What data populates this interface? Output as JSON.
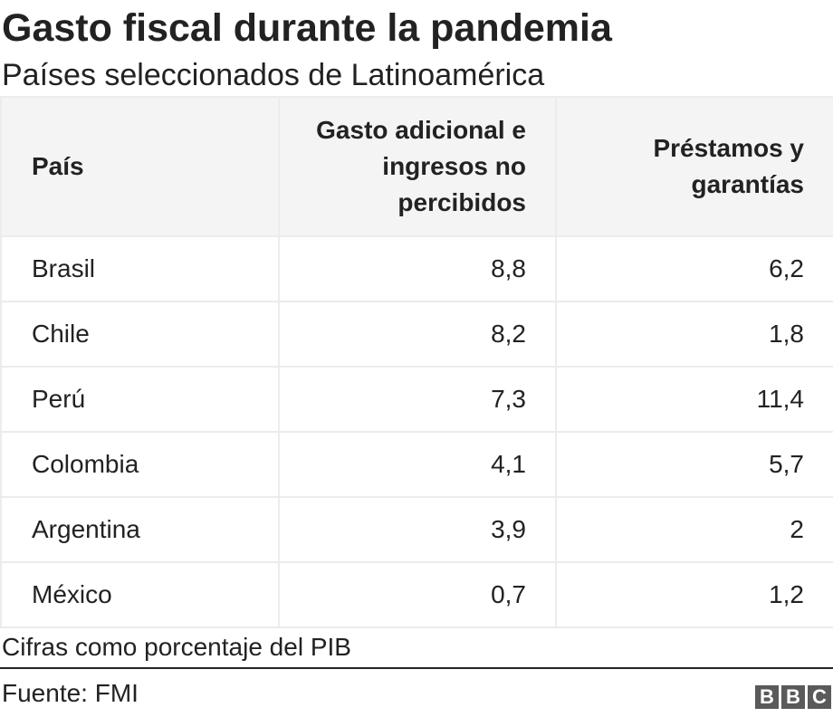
{
  "chart_data": {
    "type": "table",
    "title": "Gasto fiscal durante la pandemia",
    "subtitle": "Países seleccionados de Latinoamérica",
    "columns": [
      "País",
      "Gasto adicional e ingresos no percibidos",
      "Préstamos y garantías"
    ],
    "rows": [
      [
        "Brasil",
        "8,8",
        "6,2"
      ],
      [
        "Chile",
        "8,2",
        "1,8"
      ],
      [
        "Perú",
        "7,3",
        "11,4"
      ],
      [
        "Colombia",
        "4,1",
        "5,7"
      ],
      [
        "Argentina",
        "3,9",
        "2"
      ],
      [
        "México",
        "0,7",
        "1,2"
      ]
    ],
    "note": "Cifras como porcentaje del PIB",
    "source": "Fuente: FMI"
  },
  "logo": {
    "letters": [
      "B",
      "B",
      "C"
    ]
  }
}
